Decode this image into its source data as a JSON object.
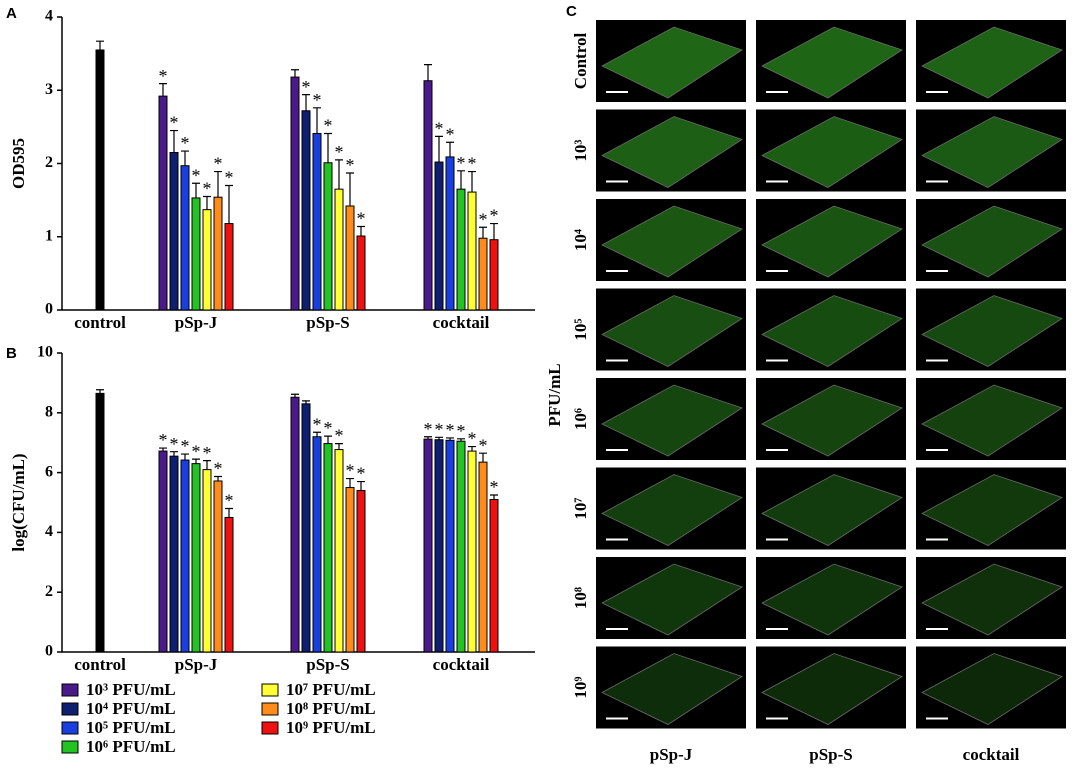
{
  "chart_data": [
    {
      "type": "bar",
      "panel_label": "A",
      "y_label": "OD595",
      "categories": [
        "control",
        "pSp-J",
        "pSp-S",
        "cocktail"
      ],
      "ylim": [
        0,
        4
      ],
      "yticks": [
        0,
        1,
        2,
        3,
        4
      ],
      "series": [
        {
          "color": "#000000",
          "values": [
            3.55,
            null,
            null,
            null
          ],
          "errors": [
            0.12,
            null,
            null,
            null
          ]
        },
        {
          "color": "#4b1a8a",
          "values": [
            null,
            2.92,
            3.18,
            3.13
          ],
          "errors": [
            null,
            0.17,
            0.1,
            0.22
          ],
          "annotations": [
            null,
            "*",
            null,
            null
          ]
        },
        {
          "color": "#0d1f6e",
          "values": [
            null,
            2.15,
            2.72,
            2.02
          ],
          "errors": [
            null,
            0.3,
            0.22,
            0.35
          ],
          "annotations": [
            null,
            "*",
            "*",
            "*"
          ]
        },
        {
          "color": "#1a3fe0",
          "values": [
            null,
            1.97,
            2.41,
            2.09
          ],
          "errors": [
            null,
            0.2,
            0.35,
            0.2
          ],
          "annotations": [
            null,
            "*",
            "*",
            "*"
          ]
        },
        {
          "color": "#22c322",
          "values": [
            null,
            1.53,
            2.01,
            1.65
          ],
          "errors": [
            null,
            0.2,
            0.4,
            0.25
          ],
          "annotations": [
            null,
            "*",
            "*",
            "*"
          ]
        },
        {
          "color": "#ffff33",
          "values": [
            null,
            1.37,
            1.65,
            1.61
          ],
          "errors": [
            null,
            0.18,
            0.4,
            0.28
          ],
          "annotations": [
            null,
            "*",
            "*",
            "*"
          ]
        },
        {
          "color": "#ff8c1a",
          "values": [
            null,
            1.54,
            1.42,
            0.98
          ],
          "errors": [
            null,
            0.35,
            0.45,
            0.15
          ],
          "annotations": [
            null,
            "*",
            "*",
            "*"
          ]
        },
        {
          "color": "#ee1111",
          "values": [
            null,
            1.18,
            1.01,
            0.96
          ],
          "errors": [
            null,
            0.52,
            0.13,
            0.22
          ],
          "annotations": [
            null,
            "*",
            "*",
            "*"
          ]
        }
      ]
    },
    {
      "type": "bar",
      "panel_label": "B",
      "y_label": "log(CFU/mL)",
      "categories": [
        "control",
        "pSp-J",
        "pSp-S",
        "cocktail"
      ],
      "ylim": [
        0,
        10
      ],
      "yticks": [
        0,
        2,
        4,
        6,
        8,
        10
      ],
      "series": [
        {
          "color": "#000000",
          "values": [
            8.65,
            null,
            null,
            null
          ],
          "errors": [
            0.12,
            null,
            null,
            null
          ]
        },
        {
          "name": "10³ PFU/mL",
          "color": "#4b1a8a",
          "values": [
            null,
            6.72,
            8.52,
            7.12
          ],
          "errors": [
            null,
            0.1,
            0.1,
            0.08
          ],
          "annotations": [
            null,
            "*",
            null,
            "*"
          ]
        },
        {
          "name": "10⁴ PFU/mL",
          "color": "#0d1f6e",
          "values": [
            null,
            6.55,
            8.3,
            7.1
          ],
          "errors": [
            null,
            0.15,
            0.1,
            0.08
          ],
          "annotations": [
            null,
            "*",
            null,
            "*"
          ]
        },
        {
          "name": "10⁵ PFU/mL",
          "color": "#1a3fe0",
          "values": [
            null,
            6.42,
            7.2,
            7.08
          ],
          "errors": [
            null,
            0.2,
            0.15,
            0.08
          ],
          "annotations": [
            null,
            "*",
            "*",
            "*"
          ]
        },
        {
          "name": "10⁶ PFU/mL",
          "color": "#22c322",
          "values": [
            null,
            6.3,
            6.97,
            7.05
          ],
          "errors": [
            null,
            0.15,
            0.25,
            0.08
          ],
          "annotations": [
            null,
            "*",
            "*",
            "*"
          ]
        },
        {
          "name": "10⁷ PFU/mL",
          "color": "#ffff33",
          "values": [
            null,
            6.1,
            6.77,
            6.72
          ],
          "errors": [
            null,
            0.3,
            0.2,
            0.15
          ],
          "annotations": [
            null,
            "*",
            "*",
            "*"
          ]
        },
        {
          "name": "10⁸ PFU/mL",
          "color": "#ff8c1a",
          "values": [
            null,
            5.72,
            5.5,
            6.35
          ],
          "errors": [
            null,
            0.15,
            0.3,
            0.3
          ],
          "annotations": [
            null,
            "*",
            "*",
            "*"
          ]
        },
        {
          "name": "10⁹ PFU/mL",
          "color": "#ee1111",
          "values": [
            null,
            4.5,
            5.4,
            5.1
          ],
          "errors": [
            null,
            0.3,
            0.3,
            0.15
          ],
          "annotations": [
            null,
            "*",
            "*",
            "*"
          ]
        }
      ]
    }
  ],
  "panel_c": {
    "panel_label": "C",
    "y_label": "PFU/mL",
    "row_labels": [
      "Control",
      "10³",
      "10⁴",
      "10⁵",
      "10⁶",
      "10⁷",
      "10⁸",
      "10⁹"
    ],
    "column_labels": [
      "pSp-J",
      "pSp-S",
      "cocktail"
    ]
  }
}
